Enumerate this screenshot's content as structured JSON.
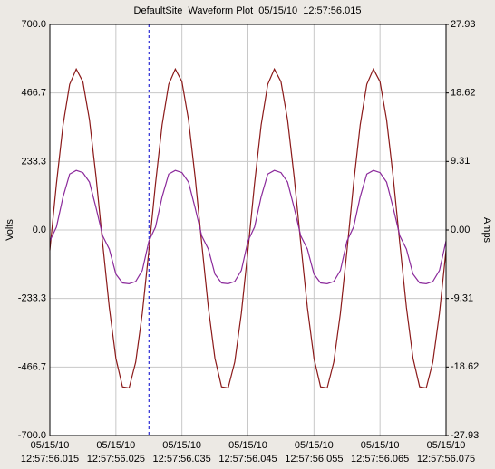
{
  "chart_data": {
    "type": "line",
    "title": "DefaultSite  Waveform Plot  05/15/10  12:57:56.015",
    "ylabel": "Volts",
    "y2label": "Amps",
    "x": [
      56.015,
      56.016,
      56.017,
      56.018,
      56.019,
      56.02,
      56.021,
      56.022,
      56.023,
      56.024,
      56.025,
      56.026,
      56.027,
      56.028,
      56.029,
      56.03,
      56.031,
      56.032,
      56.033,
      56.034,
      56.035,
      56.036,
      56.037,
      56.038,
      56.039,
      56.04,
      56.041,
      56.042,
      56.043,
      56.044,
      56.045,
      56.046,
      56.047,
      56.048,
      56.049,
      56.05,
      56.051,
      56.052,
      56.053,
      56.054,
      56.055,
      56.056,
      56.057,
      56.058,
      56.059,
      56.06,
      56.061,
      56.062,
      56.063,
      56.064,
      56.065,
      56.066,
      56.067,
      56.068,
      56.069,
      56.07,
      56.071,
      56.072,
      56.073,
      56.074,
      56.075
    ],
    "series": [
      {
        "name": "Volts",
        "color": "#8b1a1a",
        "axis": "y",
        "values": [
          -69,
          158,
          358,
          496,
          548,
          505,
          375,
          180,
          -46,
          -264,
          -437,
          -534,
          -538,
          -450,
          -284,
          -69,
          158,
          358,
          496,
          548,
          505,
          375,
          180,
          -46,
          -264,
          -437,
          -534,
          -538,
          -450,
          -284,
          -69,
          158,
          358,
          496,
          548,
          505,
          375,
          180,
          -46,
          -264,
          -437,
          -534,
          -538,
          -450,
          -284,
          -69,
          158,
          358,
          496,
          548,
          505,
          375,
          180,
          -46,
          -264,
          -437,
          -534,
          -538,
          -450,
          -284,
          -69
        ]
      },
      {
        "name": "Amps",
        "color": "#8b2a9b",
        "axis": "y2",
        "values": [
          -1.5,
          0.4,
          4.5,
          7.6,
          8.1,
          7.8,
          6.5,
          3.0,
          -0.8,
          -2.6,
          -6.0,
          -7.2,
          -7.3,
          -7.0,
          -5.5,
          -1.5,
          0.4,
          4.5,
          7.6,
          8.1,
          7.8,
          6.5,
          3.0,
          -0.8,
          -2.6,
          -6.0,
          -7.2,
          -7.3,
          -7.0,
          -5.5,
          -1.5,
          0.4,
          4.5,
          7.6,
          8.1,
          7.8,
          6.5,
          3.0,
          -0.8,
          -2.6,
          -6.0,
          -7.2,
          -7.3,
          -7.0,
          -5.5,
          -1.5,
          0.4,
          4.5,
          7.6,
          8.1,
          7.8,
          6.5,
          3.0,
          -0.8,
          -2.6,
          -6.0,
          -7.2,
          -7.3,
          -7.0,
          -5.5,
          -1.5
        ]
      }
    ],
    "xlim": [
      56.015,
      56.075
    ],
    "xticks": [
      {
        "value": 56.015,
        "label": "05/15/10\n12:57:56.015"
      },
      {
        "value": 56.025,
        "label": "05/15/10\n12:57:56.025"
      },
      {
        "value": 56.035,
        "label": "05/15/10\n12:57:56.035"
      },
      {
        "value": 56.045,
        "label": "05/15/10\n12:57:56.045"
      },
      {
        "value": 56.055,
        "label": "05/15/10\n12:57:56.055"
      },
      {
        "value": 56.065,
        "label": "05/15/10\n12:57:56.065"
      },
      {
        "value": 56.075,
        "label": "05/15/10\n12:57:56.075"
      }
    ],
    "ylim": [
      -700,
      700
    ],
    "yticks": [
      {
        "value": -700,
        "label": "-700.0"
      },
      -466.7,
      -233.3,
      {
        "value": 0,
        "label": "0.0"
      },
      233.3,
      466.7,
      {
        "value": 700,
        "label": "700.0"
      }
    ],
    "y2lim": [
      -27.93,
      27.93
    ],
    "y2ticks": [
      -27.93,
      -18.62,
      -9.31,
      {
        "value": 0,
        "label": "0.00"
      },
      9.31,
      18.62,
      27.93
    ],
    "cursor_x": [
      56.015,
      56.03
    ],
    "cursor_color": "#0000cc",
    "grid": true
  }
}
